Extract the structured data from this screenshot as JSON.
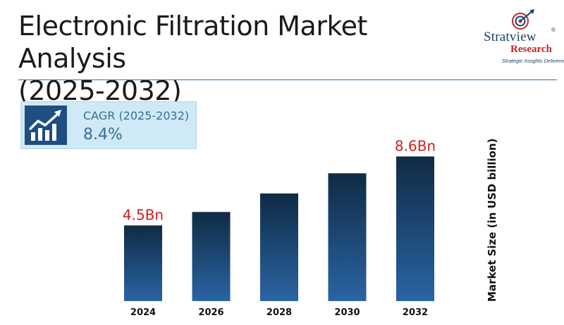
{
  "header": {
    "title_line1": "Electronic Filtration Market Analysis",
    "title_line2": "(2025-2032)"
  },
  "logo": {
    "brand_top": "Stratview",
    "registered": "®",
    "brand_bottom": "Research",
    "tagline": "Strategic Insights Delivered"
  },
  "cagr": {
    "label": "CAGR (2025-2032)",
    "value": "8.4%",
    "icon": "growth-chart-icon"
  },
  "colors": {
    "bar_top": "#0f2b45",
    "bar_bottom": "#2a64a3",
    "data_label": "#d11f1f",
    "rule": "#3f6f93"
  },
  "chart_data": {
    "type": "bar",
    "title": "",
    "categories": [
      "2024",
      "2026",
      "2028",
      "2030",
      "2032"
    ],
    "values": [
      4.5,
      5.3,
      6.4,
      7.6,
      8.6
    ],
    "data_labels": [
      "4.5Bn",
      "",
      "",
      "",
      "8.6Bn"
    ],
    "xlabel": "",
    "ylabel": "Market Size (in USD billion)",
    "ylim": [
      0,
      10.5
    ],
    "grid": false,
    "legend": "none"
  }
}
